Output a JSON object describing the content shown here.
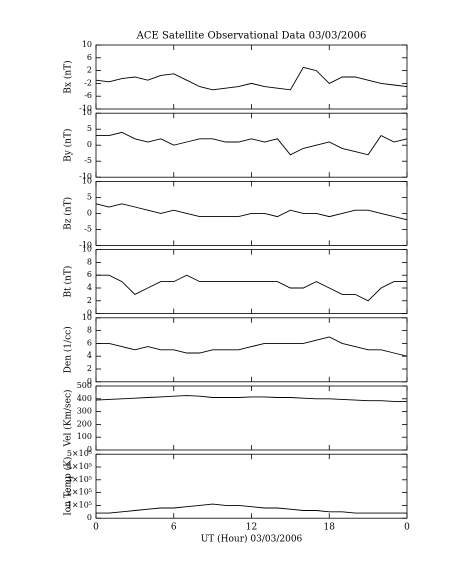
{
  "chart_data": [
    {
      "type": "line",
      "title": "ACE Satellite Observational Data   03/03/2006",
      "ylabel": "Bx (nT)",
      "ylim": [
        -10,
        10
      ],
      "yticks": [
        -10,
        -6,
        -2,
        2,
        6,
        10
      ],
      "series": [
        {
          "color": "#000000",
          "values": [
            -1,
            -1.5,
            -0.5,
            0,
            -1,
            0.5,
            1,
            -1,
            -3,
            -4,
            -3.5,
            -3,
            -2,
            -3,
            -3.5,
            -4,
            3,
            2,
            -2,
            0,
            0,
            -1,
            -2,
            -2.5,
            -3
          ]
        }
      ]
    },
    {
      "type": "line",
      "ylabel": "By (nT)",
      "ylim": [
        -10,
        10
      ],
      "yticks": [
        -10,
        -5,
        0,
        5,
        10
      ],
      "series": [
        {
          "color": "#000000",
          "values": [
            3,
            3,
            4,
            2,
            1,
            2,
            0,
            1,
            2,
            2,
            1,
            1,
            2,
            1,
            2,
            -3,
            -1,
            0,
            1,
            -1,
            -2,
            -3,
            3,
            1,
            2
          ]
        }
      ]
    },
    {
      "type": "line",
      "ylabel": "Bz (nT)",
      "ylim": [
        -10,
        10
      ],
      "yticks": [
        -10,
        -5,
        0,
        5,
        10
      ],
      "series": [
        {
          "color": "#000000",
          "values": [
            3,
            2,
            3,
            2,
            1,
            0,
            1,
            0,
            -1,
            -1,
            -1,
            -1,
            0,
            0,
            -1,
            1,
            0,
            0,
            -1,
            0,
            1,
            1,
            0,
            -1,
            -2
          ]
        }
      ]
    },
    {
      "type": "line",
      "ylabel": "Bt (nT)",
      "ylim": [
        0,
        10
      ],
      "yticks": [
        0,
        2,
        4,
        6,
        8,
        10
      ],
      "series": [
        {
          "color": "#000000",
          "values": [
            6,
            6,
            5,
            3,
            4,
            5,
            5,
            6,
            5,
            5,
            5,
            5,
            5,
            5,
            5,
            4,
            4,
            5,
            4,
            3,
            3,
            2,
            4,
            5,
            5
          ]
        }
      ]
    },
    {
      "type": "line",
      "ylabel": "Den (1/cc)",
      "ylim": [
        0,
        10
      ],
      "yticks": [
        0,
        2,
        4,
        6,
        8,
        10
      ],
      "series": [
        {
          "color": "#000000",
          "values": [
            6,
            6,
            5.5,
            5,
            5.5,
            5,
            5,
            4.5,
            4.5,
            5,
            5,
            5,
            5.5,
            6,
            6,
            6,
            6,
            6.5,
            7,
            6,
            5.5,
            5,
            5,
            4.5,
            4
          ]
        }
      ]
    },
    {
      "type": "line",
      "ylabel": "Vel (Km/sec)",
      "ylim": [
        0,
        500
      ],
      "yticks": [
        0,
        100,
        200,
        300,
        400,
        500
      ],
      "series": [
        {
          "color": "#000000",
          "values": [
            390,
            395,
            400,
            405,
            410,
            415,
            420,
            425,
            420,
            410,
            410,
            410,
            415,
            415,
            410,
            410,
            405,
            400,
            400,
            395,
            390,
            385,
            385,
            380,
            380
          ]
        }
      ]
    },
    {
      "type": "line",
      "ylabel": "Ion Temp (K)",
      "ylim": [
        0,
        500000
      ],
      "yticks": [
        0,
        {
          "value": 100000,
          "label": "1×10⁵"
        },
        {
          "value": 200000,
          "label": "2×10⁵"
        },
        {
          "value": 300000,
          "label": "3×10⁵"
        },
        {
          "value": 400000,
          "label": "4×10⁵"
        },
        {
          "value": 500000,
          "label": "5×10⁵"
        }
      ],
      "xlabel": "UT (Hour)   03/03/2006",
      "x": [
        0,
        1,
        2,
        3,
        4,
        5,
        6,
        7,
        8,
        9,
        10,
        11,
        12,
        13,
        14,
        15,
        16,
        17,
        18,
        19,
        20,
        21,
        22,
        23,
        24
      ],
      "xlim": [
        0,
        24
      ],
      "xticks": [
        0,
        6,
        12,
        18,
        {
          "value": 24,
          "label": "0"
        }
      ],
      "series": [
        {
          "color": "#000000",
          "values": [
            40000,
            40000,
            50000,
            60000,
            70000,
            80000,
            80000,
            90000,
            100000,
            110000,
            100000,
            100000,
            90000,
            80000,
            80000,
            70000,
            60000,
            60000,
            50000,
            50000,
            40000,
            40000,
            40000,
            40000,
            40000
          ]
        }
      ]
    }
  ]
}
